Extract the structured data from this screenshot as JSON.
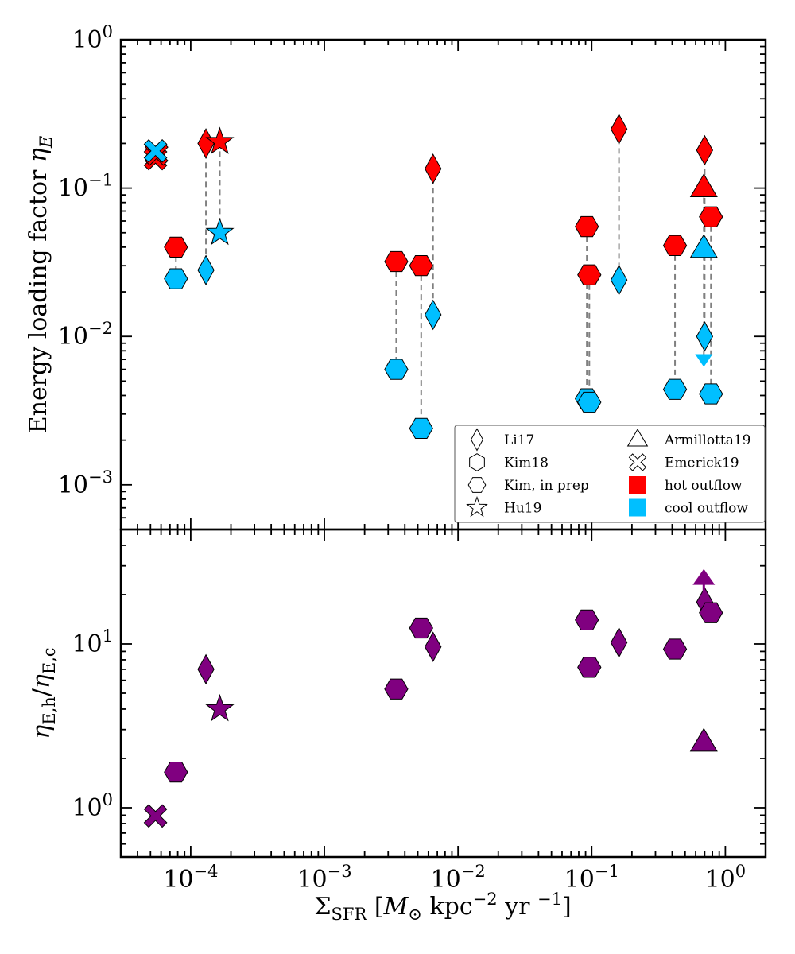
{
  "colors": {
    "hot": "#ff0000",
    "cool": "#00bfff",
    "ratio": "#800080",
    "connector": "#808080"
  },
  "chart_data": [
    {
      "type": "scatter",
      "panel": "top",
      "xscale": "log",
      "yscale": "log",
      "xlim": [
        3e-05,
        2.0
      ],
      "ylim": [
        0.0005,
        1.0
      ],
      "ylabel": "Energy loading factor η_E",
      "yticks": [
        {
          "value": 1.0,
          "base": "10",
          "exp": "0"
        },
        {
          "value": 0.1,
          "base": "10",
          "exp": "−1"
        },
        {
          "value": 0.01,
          "base": "10",
          "exp": "−2"
        },
        {
          "value": 0.001,
          "base": "10",
          "exp": "−3"
        }
      ],
      "legend": {
        "position": "lower-right",
        "entries": [
          {
            "label": "Li17",
            "symbol": "diamond"
          },
          {
            "label": "Armillotta19",
            "symbol": "triangle"
          },
          {
            "label": "Kim18",
            "symbol": "hexagon"
          },
          {
            "label": "Emerick19",
            "symbol": "x"
          },
          {
            "label": "Kim, in prep",
            "symbol": "hexagon-flat"
          },
          {
            "label": "hot outflow",
            "symbol": "square-hot"
          },
          {
            "label": "Hu19",
            "symbol": "star"
          },
          {
            "label": "cool outflow",
            "symbol": "square-cool"
          }
        ]
      },
      "pairs": [
        {
          "x": 5.45e-05,
          "hot": 0.158,
          "cool": 0.178,
          "marker": "x",
          "connect": false
        },
        {
          "x": 5.55e-05,
          "hot": 0.17,
          "cool": null,
          "marker": "x",
          "connect": false
        },
        {
          "x": 7.75e-05,
          "hot": 0.04,
          "cool": 0.0245,
          "marker": "hexagon-flat",
          "connect": true
        },
        {
          "x": 0.00013,
          "hot": 0.2,
          "cool": 0.028,
          "marker": "diamond",
          "connect": true
        },
        {
          "x": 0.000165,
          "hot": 0.205,
          "cool": 0.05,
          "marker": "star",
          "connect": true
        },
        {
          "x": 0.00345,
          "hot": 0.032,
          "cool": 0.006,
          "marker": "hexagon-flat",
          "connect": true
        },
        {
          "x": 0.0053,
          "hot": 0.03,
          "cool": 0.0024,
          "marker": "hexagon-flat",
          "connect": true
        },
        {
          "x": 0.0065,
          "hot": 0.135,
          "cool": 0.014,
          "marker": "diamond",
          "connect": true
        },
        {
          "x": 0.092,
          "hot": 0.055,
          "cool": 0.0038,
          "marker": "hexagon-flat",
          "connect": true
        },
        {
          "x": 0.096,
          "hot": 0.026,
          "cool": 0.0036,
          "marker": "hexagon-flat",
          "connect": true
        },
        {
          "x": 0.16,
          "hot": 0.25,
          "cool": 0.024,
          "marker": "diamond",
          "connect": true
        },
        {
          "x": 0.42,
          "hot": 0.041,
          "cool": 0.0044,
          "marker": "hexagon-flat",
          "connect": true
        },
        {
          "x": 0.7,
          "hot": 0.18,
          "cool": 0.01,
          "marker": "diamond",
          "connect": true
        },
        {
          "x": 0.69,
          "hot": 0.1,
          "cool": 0.039,
          "marker": "triangle",
          "connect": true,
          "cool_upper_limit": 0.0068
        },
        {
          "x": 0.78,
          "hot": 0.064,
          "cool": 0.0041,
          "marker": "hexagon-flat",
          "connect": true
        }
      ]
    },
    {
      "type": "scatter",
      "panel": "bottom",
      "xscale": "log",
      "yscale": "log",
      "xlim": [
        3e-05,
        2.0
      ],
      "ylim": [
        0.5,
        50
      ],
      "ylabel": "η_E,h / η_E,c",
      "xlabel": "Σ_SFR [M⊙ kpc⁻² yr⁻¹]",
      "yticks": [
        {
          "value": 10,
          "base": "10",
          "exp": "1"
        },
        {
          "value": 1,
          "base": "10",
          "exp": "0"
        }
      ],
      "xticks": [
        {
          "value": 0.0001,
          "base": "10",
          "exp": "−4"
        },
        {
          "value": 0.001,
          "base": "10",
          "exp": "−3"
        },
        {
          "value": 0.01,
          "base": "10",
          "exp": "−2"
        },
        {
          "value": 0.1,
          "base": "10",
          "exp": "−1"
        },
        {
          "value": 1.0,
          "base": "10",
          "exp": "0"
        }
      ],
      "points": [
        {
          "x": 5.45e-05,
          "y": 0.89,
          "marker": "x"
        },
        {
          "x": 7.75e-05,
          "y": 1.65,
          "marker": "hexagon-flat"
        },
        {
          "x": 0.00013,
          "y": 7.0,
          "marker": "diamond"
        },
        {
          "x": 0.000165,
          "y": 4.0,
          "marker": "star"
        },
        {
          "x": 0.00345,
          "y": 5.3,
          "marker": "hexagon-flat"
        },
        {
          "x": 0.0053,
          "y": 12.5,
          "marker": "hexagon-flat"
        },
        {
          "x": 0.0065,
          "y": 9.6,
          "marker": "diamond"
        },
        {
          "x": 0.092,
          "y": 14.0,
          "marker": "hexagon-flat"
        },
        {
          "x": 0.096,
          "y": 7.2,
          "marker": "hexagon-flat"
        },
        {
          "x": 0.16,
          "y": 10.2,
          "marker": "diamond"
        },
        {
          "x": 0.42,
          "y": 9.3,
          "marker": "hexagon-flat"
        },
        {
          "x": 0.7,
          "y": 18.0,
          "marker": "diamond"
        },
        {
          "x": 0.69,
          "y": 2.5,
          "marker": "triangle"
        },
        {
          "x": 0.69,
          "y": 24.0,
          "marker": "arrow-up",
          "lower_limit": true
        },
        {
          "x": 0.78,
          "y": 15.5,
          "marker": "hexagon-flat"
        }
      ]
    }
  ]
}
